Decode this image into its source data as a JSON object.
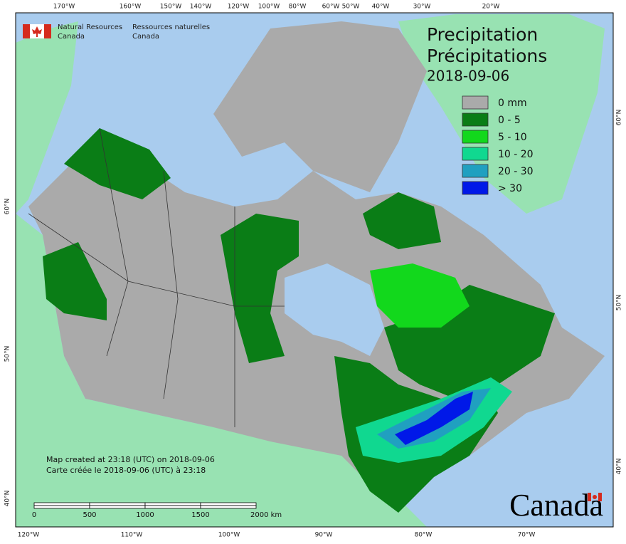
{
  "header": {
    "org_en_1": "Natural Resources",
    "org_en_2": "Canada",
    "org_fr_1": "Ressources naturelles",
    "org_fr_2": "Canada"
  },
  "title": {
    "en": "Precipitation",
    "fr": "Précipitations",
    "date": "2018-09-06"
  },
  "legend": {
    "items": [
      {
        "label": "0 mm",
        "color": "#aaaaaa"
      },
      {
        "label": "0 - 5",
        "color": "#0a7d16"
      },
      {
        "label": "5 - 10",
        "color": "#12d81c"
      },
      {
        "label": "10 - 20",
        "color": "#10d890"
      },
      {
        "label": "20 - 30",
        "color": "#20a0c0"
      },
      {
        "label": "> 30",
        "color": "#0018e8"
      }
    ]
  },
  "graticule": {
    "top": [
      "170°W",
      "160°W",
      "150°W",
      "140°W",
      "120°W",
      "100°W",
      "80°W",
      "60°W",
      "50°W",
      "40°W",
      "30°W",
      "20°W"
    ],
    "bottom": [
      "120°W",
      "110°W",
      "100°W",
      "90°W",
      "80°W",
      "70°W"
    ],
    "left": [
      "60°N",
      "50°N",
      "40°N"
    ],
    "right": [
      "60°N",
      "50°N",
      "40°N"
    ]
  },
  "notes": {
    "en": "Map created at 23:18 (UTC) on 2018-09-06",
    "fr": "Carte créée le 2018-09-06 (UTC) à 23:18"
  },
  "scale_bar": {
    "labels": [
      "0",
      "500",
      "1000",
      "1500",
      "2000 km"
    ]
  },
  "wordmark": "Canada"
}
